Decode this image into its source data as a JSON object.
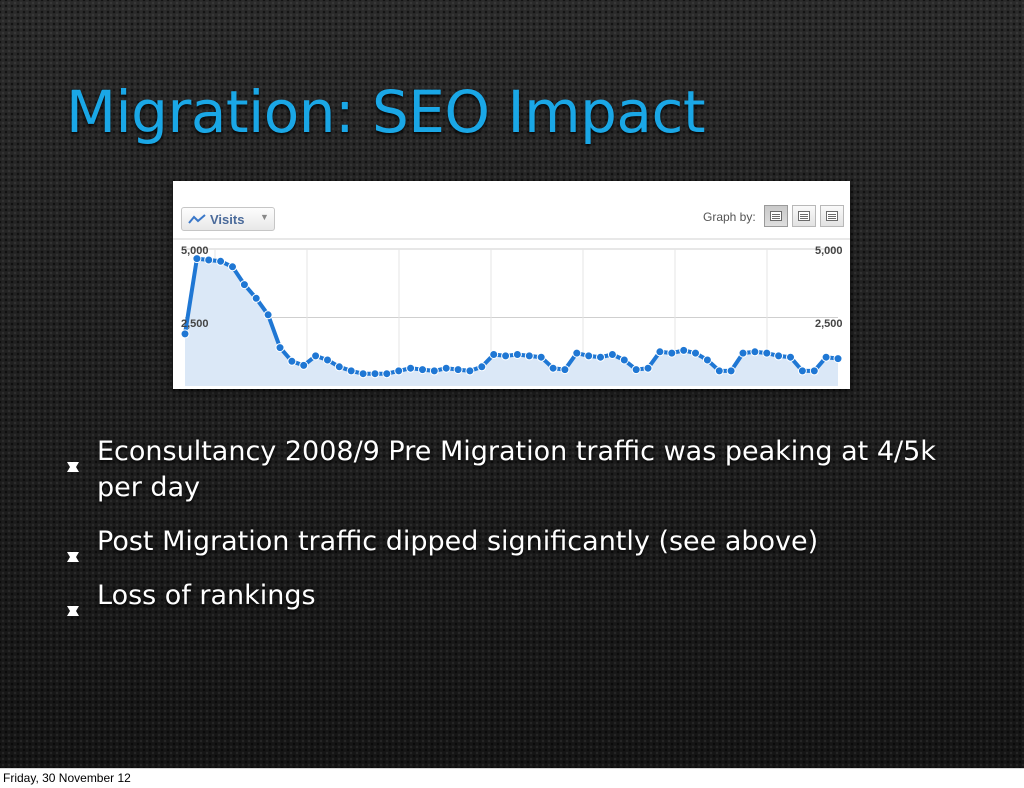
{
  "slide": {
    "title": "Migration: SEO Impact",
    "bullets": [
      "Econsultancy 2008/9 Pre Migration traffic was peaking at 4/5k per day",
      "Post Migration traffic dipped significantly (see above)",
      "Loss of rankings"
    ]
  },
  "analytics_widget": {
    "metric_button": "Visits",
    "graph_by_label": "Graph by:",
    "graph_by_options": [
      "day-icon",
      "week-icon",
      "month-icon"
    ],
    "graph_by_selected": 0
  },
  "chart_data": {
    "type": "area",
    "ylim": [
      0,
      5000
    ],
    "y_tick_labels": [
      "5,000",
      "2,500"
    ],
    "y_ticks": [
      5000,
      2500
    ],
    "series": [
      {
        "values": [
          1900,
          4650,
          4600,
          4550,
          4350,
          3700,
          3200,
          2600,
          1400,
          900,
          750,
          1100,
          950,
          700,
          550,
          450,
          450,
          450,
          550,
          650,
          600,
          550,
          650,
          600,
          550,
          700,
          1150,
          1100,
          1150,
          1100,
          1050,
          650,
          600,
          1200,
          1100,
          1050,
          1150,
          950,
          600,
          650,
          1250,
          1200,
          1300,
          1200,
          950,
          550,
          550,
          1200,
          1250,
          1200,
          1100,
          1050,
          550,
          550,
          1050,
          1000
        ]
      }
    ],
    "colors": {
      "line": "#1f77d4",
      "fill": "#dbe8f7",
      "grid": "#e6e6e6"
    }
  },
  "footer": {
    "date": "Friday, 30 November 12"
  }
}
